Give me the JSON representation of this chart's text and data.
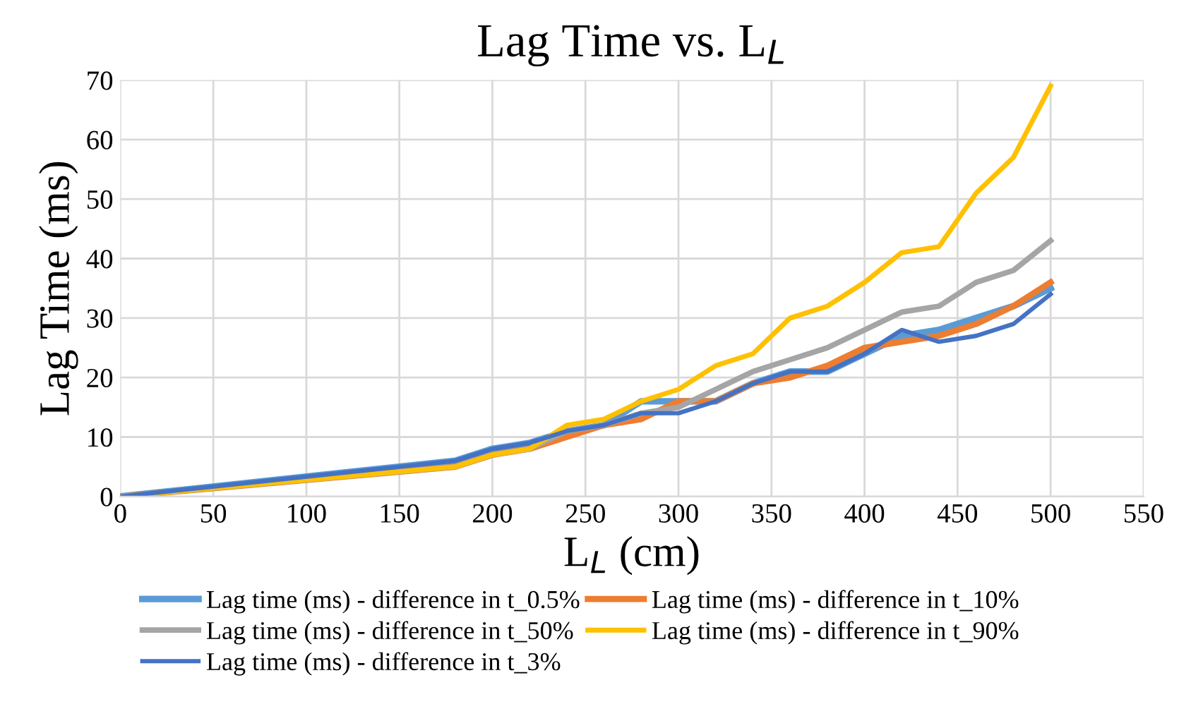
{
  "chart_data": {
    "type": "line",
    "title": "Lag Time vs. L$_{L}$",
    "xlabel": "L$_{L}$ (cm)",
    "ylabel": "Lag Time (ms)",
    "x": [
      0,
      180,
      200,
      220,
      240,
      260,
      280,
      300,
      320,
      340,
      360,
      380,
      400,
      420,
      440,
      460,
      480,
      500
    ],
    "series": [
      {
        "name": "Lag time (ms) - difference in t_0.5%",
        "color": "#5b9bd5",
        "values": [
          0,
          6,
          8,
          9,
          11,
          12,
          16,
          16,
          16,
          19,
          21,
          21,
          24,
          27,
          28,
          30,
          32,
          35
        ]
      },
      {
        "name": "Lag time (ms) - difference in t_10%",
        "color": "#ed7d31",
        "values": [
          0,
          5,
          7,
          8,
          10,
          12,
          13,
          16,
          16,
          19,
          20,
          22,
          25,
          26,
          27,
          29,
          32,
          36
        ]
      },
      {
        "name": "Lag time (ms) - difference in t_50%",
        "color": "#a5a5a5",
        "values": [
          0,
          5,
          7,
          8,
          11,
          12,
          14,
          15,
          18,
          21,
          23,
          25,
          28,
          31,
          32,
          36,
          38,
          43
        ]
      },
      {
        "name": "Lag time (ms) - difference in t_90%",
        "color": "#ffc000",
        "values": [
          0,
          5,
          7,
          8,
          12,
          13,
          16,
          18,
          22,
          24,
          30,
          32,
          36,
          41,
          42,
          51,
          57,
          69
        ]
      },
      {
        "name": "Lag time (ms) - difference in t_3%",
        "color": "#4472c4",
        "values": [
          0,
          6,
          8,
          9,
          11,
          12,
          14,
          14,
          16,
          19,
          21,
          21,
          24,
          28,
          26,
          27,
          29,
          34
        ]
      }
    ],
    "xlim": [
      0,
      550
    ],
    "xticks": [
      0,
      50,
      100,
      150,
      200,
      250,
      300,
      350,
      400,
      450,
      500,
      550
    ],
    "ylim": [
      0,
      70
    ],
    "yticks": [
      0,
      10,
      20,
      30,
      40,
      50,
      60,
      70
    ],
    "grid": true,
    "legend": "bottom",
    "marker": "none",
    "line_style": "solid"
  }
}
